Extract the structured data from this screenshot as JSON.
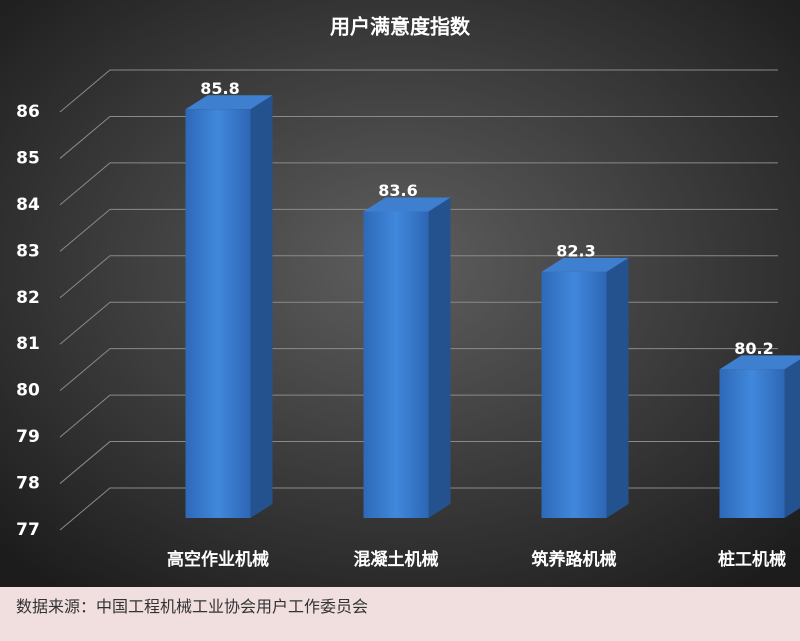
{
  "chart_data": {
    "type": "bar3d",
    "title": "用户满意度指数",
    "categories": [
      "高空作业机械",
      "混凝土机械",
      "筑养路机械",
      "桩工机械"
    ],
    "values": [
      85.8,
      83.6,
      82.3,
      80.2
    ],
    "color": "#3a78cf",
    "ylim": [
      77,
      86
    ],
    "yticks": [
      77,
      78,
      79,
      80,
      81,
      82,
      83,
      84,
      85,
      86
    ],
    "grid": true
  },
  "footer": {
    "source": "数据来源：中国工程机械工业协会用户工作委员会"
  }
}
